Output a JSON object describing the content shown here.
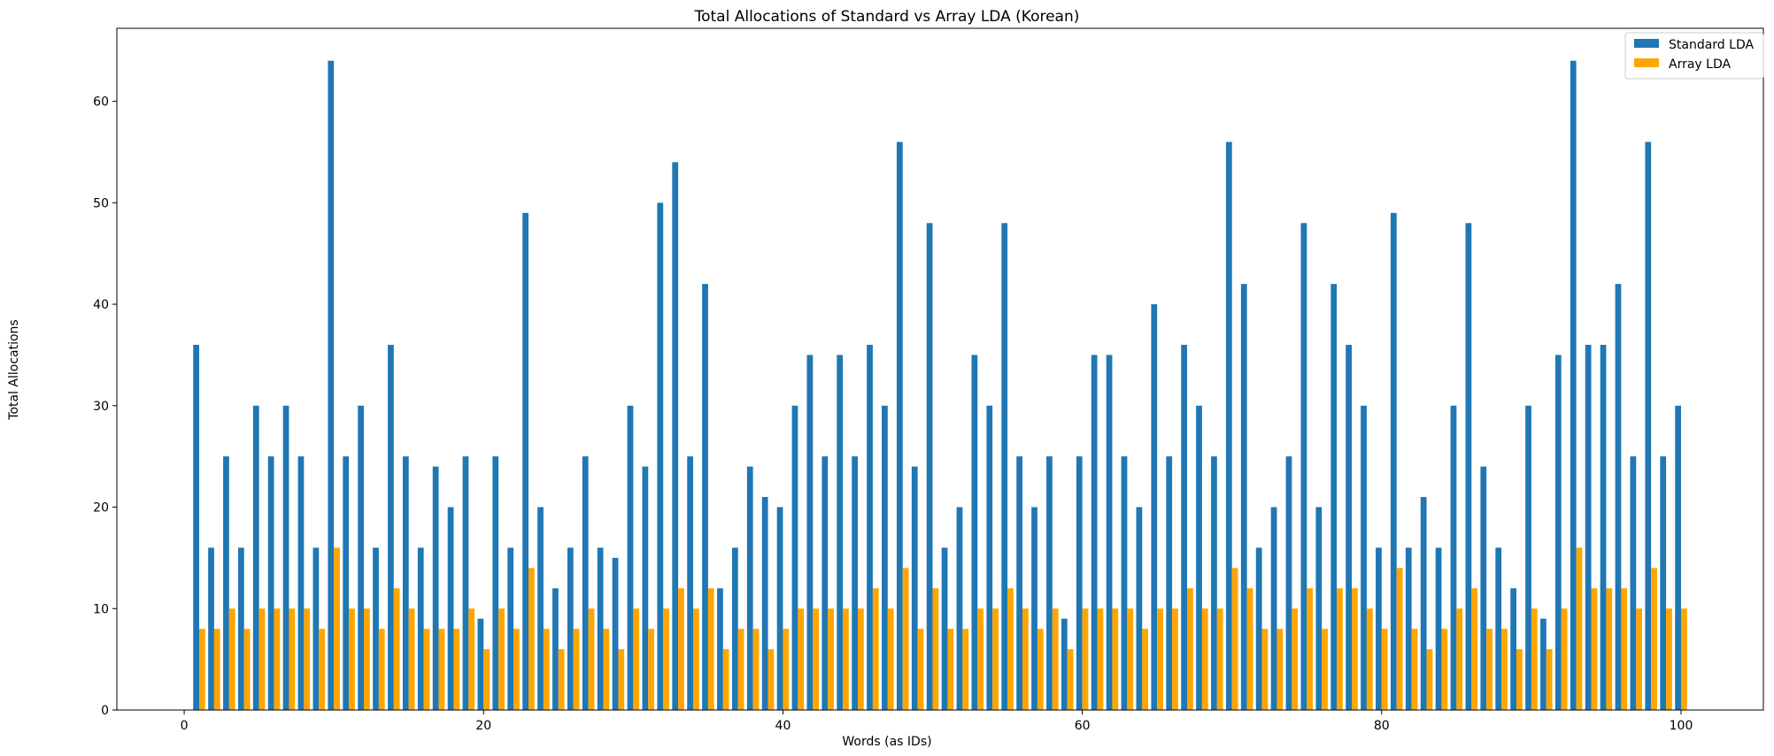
{
  "chart_data": {
    "type": "bar",
    "title": "Total Allocations of Standard vs Array LDA (Korean)",
    "xlabel": "Words (as IDs)",
    "ylabel": "Total Allocations",
    "xlim": [
      -4.5,
      105.5
    ],
    "ylim": [
      0,
      67.2
    ],
    "xticks": [
      0,
      20,
      40,
      60,
      80,
      100
    ],
    "yticks": [
      0,
      10,
      20,
      30,
      40,
      50,
      60
    ],
    "grid": false,
    "legend_position": "top-right",
    "x": [
      1,
      2,
      3,
      4,
      5,
      6,
      7,
      8,
      9,
      10,
      11,
      12,
      13,
      14,
      15,
      16,
      17,
      18,
      19,
      20,
      21,
      22,
      23,
      24,
      25,
      26,
      27,
      28,
      29,
      30,
      31,
      32,
      33,
      34,
      35,
      36,
      37,
      38,
      39,
      40,
      41,
      42,
      43,
      44,
      45,
      46,
      47,
      48,
      49,
      50,
      51,
      52,
      53,
      54,
      55,
      56,
      57,
      58,
      59,
      60,
      61,
      62,
      63,
      64,
      65,
      66,
      67,
      68,
      69,
      70,
      71,
      72,
      73,
      74,
      75,
      76,
      77,
      78,
      79,
      80,
      81,
      82,
      83,
      84,
      85,
      86,
      87,
      88,
      89,
      90,
      91,
      92,
      93,
      94,
      95,
      96,
      97,
      98,
      99,
      100
    ],
    "series": [
      {
        "name": "Standard LDA",
        "color": "#1f77b4",
        "values": [
          36,
          16,
          25,
          16,
          30,
          25,
          30,
          25,
          16,
          64,
          25,
          30,
          16,
          36,
          25,
          16,
          24,
          20,
          25,
          9,
          25,
          16,
          49,
          20,
          12,
          16,
          25,
          16,
          15,
          30,
          24,
          50,
          54,
          25,
          42,
          12,
          16,
          24,
          21,
          20,
          30,
          35,
          25,
          35,
          25,
          36,
          30,
          56,
          24,
          48,
          16,
          20,
          35,
          30,
          48,
          25,
          20,
          25,
          9,
          25,
          35,
          35,
          25,
          20,
          40,
          25,
          36,
          30,
          25,
          56,
          42,
          16,
          20,
          25,
          48,
          20,
          42,
          36,
          30,
          16,
          49,
          16,
          21,
          16,
          30,
          48,
          24,
          16,
          12,
          30,
          9,
          35,
          64,
          36,
          36,
          42,
          25,
          56,
          25,
          30
        ]
      },
      {
        "name": "Array LDA",
        "color": "#ffa500",
        "values": [
          8,
          8,
          10,
          8,
          10,
          10,
          10,
          10,
          8,
          16,
          10,
          10,
          8,
          12,
          10,
          8,
          8,
          8,
          10,
          6,
          10,
          8,
          14,
          8,
          6,
          8,
          10,
          8,
          6,
          10,
          8,
          10,
          12,
          10,
          12,
          6,
          8,
          8,
          6,
          8,
          10,
          10,
          10,
          10,
          10,
          12,
          10,
          14,
          8,
          12,
          8,
          8,
          10,
          10,
          12,
          10,
          8,
          10,
          6,
          10,
          10,
          10,
          10,
          8,
          10,
          10,
          12,
          10,
          10,
          14,
          12,
          8,
          8,
          10,
          12,
          8,
          12,
          12,
          10,
          8,
          14,
          8,
          6,
          8,
          10,
          12,
          8,
          8,
          6,
          10,
          6,
          10,
          16,
          12,
          12,
          12,
          10,
          14,
          10,
          10
        ]
      }
    ]
  }
}
